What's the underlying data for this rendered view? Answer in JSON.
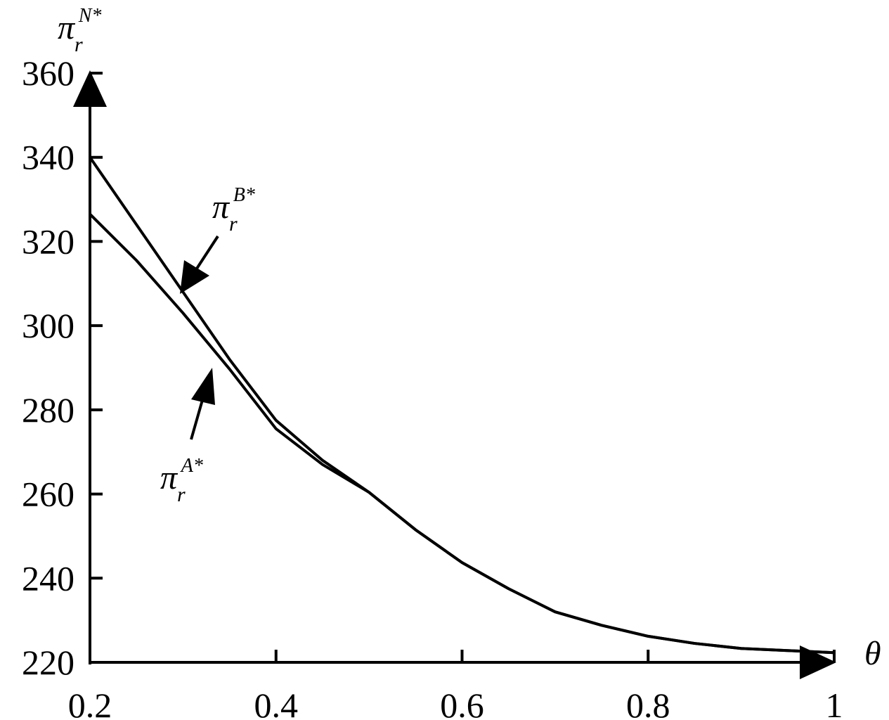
{
  "chart_data": {
    "type": "line",
    "x_label": "θ",
    "y_label": {
      "text": "π",
      "sub": "r",
      "sup": "N*"
    },
    "x": [
      0.2,
      0.25,
      0.3,
      0.35,
      0.4,
      0.45,
      0.5,
      0.55,
      0.6,
      0.65,
      0.7,
      0.75,
      0.8,
      0.85,
      0.9,
      0.95,
      1
    ],
    "series": [
      {
        "name": {
          "text": "π",
          "sub": "r",
          "sup": "B*"
        },
        "color": "#000000",
        "values": [
          340,
          324,
          308,
          292,
          277.5,
          268,
          260.4,
          251.5,
          243.7,
          237.5,
          232,
          228.8,
          226.2,
          224.5,
          223.3,
          222.8,
          222.3
        ]
      },
      {
        "name": {
          "text": "π",
          "sub": "r",
          "sup": "A*"
        },
        "color": "#000000",
        "values": [
          326.5,
          315.5,
          303,
          289.7,
          275.5,
          267,
          260.4,
          251.5,
          243.7,
          237.5,
          232,
          228.8,
          226.2,
          224.5,
          223.3,
          222.8,
          222.3
        ]
      }
    ],
    "xlim": [
      0.2,
      1
    ],
    "ylim": [
      220,
      360
    ],
    "xticks": [
      0.2,
      0.4,
      0.6,
      0.8,
      1
    ],
    "yticks": [
      220,
      240,
      260,
      280,
      300,
      320,
      340,
      360
    ]
  }
}
